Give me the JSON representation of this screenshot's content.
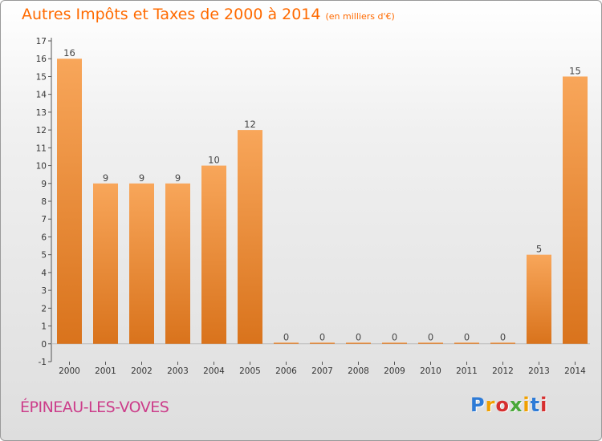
{
  "chart_data": {
    "type": "bar",
    "title": "Autres Impôts et Taxes de 2000 à 2014",
    "unit_label": "(en milliers d'€)",
    "categories": [
      "2000",
      "2001",
      "2002",
      "2003",
      "2004",
      "2005",
      "2006",
      "2007",
      "2008",
      "2009",
      "2010",
      "2011",
      "2012",
      "2013",
      "2014"
    ],
    "values": [
      16,
      9,
      9,
      9,
      10,
      12,
      0,
      0,
      0,
      0,
      0,
      0,
      0,
      5,
      15
    ],
    "y_ticks": [
      "-1",
      "0",
      "1",
      "2",
      "3",
      "4",
      "5",
      "6",
      "7",
      "8",
      "9",
      "10",
      "11",
      "12",
      "13",
      "14",
      "15",
      "16",
      "17"
    ],
    "ylim": [
      -1,
      17
    ],
    "grid": false,
    "xlabel": "",
    "ylabel": "",
    "colors": {
      "bar_light": "#f8a65a",
      "bar_dark": "#d9731c",
      "title": "#ff6a00"
    }
  },
  "footer": {
    "place": "ÉPINEAU-LES-VOVES",
    "logo_letters": [
      {
        "ch": "P",
        "color": "#2e7bd6"
      },
      {
        "ch": "r",
        "color": "#f0a000"
      },
      {
        "ch": "o",
        "color": "#d62f2f"
      },
      {
        "ch": "x",
        "color": "#4aa83a"
      },
      {
        "ch": "i",
        "color": "#f0a000"
      },
      {
        "ch": "t",
        "color": "#2e7bd6"
      },
      {
        "ch": "i",
        "color": "#d62f2f"
      }
    ]
  }
}
